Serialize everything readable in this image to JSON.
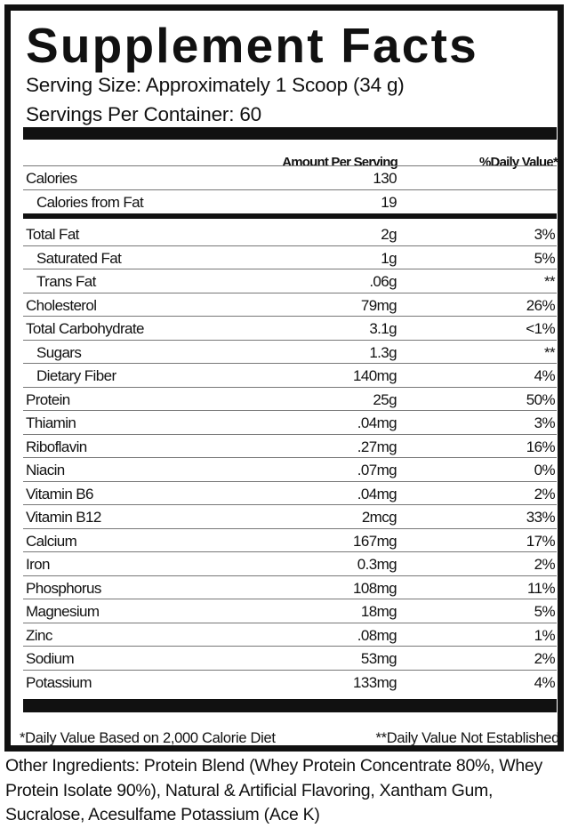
{
  "title": "Supplement Facts",
  "serving_size": "Serving Size: Approximately 1 Scoop (34 g)",
  "servings_per_container": "Servings Per Container: 60",
  "headers": {
    "amount": "Amount Per Serving",
    "daily_value": "%Daily Value*"
  },
  "calorie_rows": [
    {
      "name": "Calories",
      "amount": "130",
      "dv": "",
      "indent": false
    },
    {
      "name": "Calories from Fat",
      "amount": "19",
      "dv": "",
      "indent": true
    }
  ],
  "nutrient_rows": [
    {
      "name": "Total Fat",
      "amount": "2g",
      "dv": "3%",
      "indent": false
    },
    {
      "name": "Saturated Fat",
      "amount": "1g",
      "dv": "5%",
      "indent": true
    },
    {
      "name": "Trans Fat",
      "amount": ".06g",
      "dv": "**",
      "indent": true
    },
    {
      "name": "Cholesterol",
      "amount": "79mg",
      "dv": "26%",
      "indent": false
    },
    {
      "name": "Total Carbohydrate",
      "amount": "3.1g",
      "dv": "<1%",
      "indent": false
    },
    {
      "name": "Sugars",
      "amount": "1.3g",
      "dv": "**",
      "indent": true
    },
    {
      "name": "Dietary Fiber",
      "amount": "140mg",
      "dv": "4%",
      "indent": true
    },
    {
      "name": "Protein",
      "amount": "25g",
      "dv": "50%",
      "indent": false
    },
    {
      "name": "Thiamin",
      "amount": ".04mg",
      "dv": "3%",
      "indent": false
    },
    {
      "name": "Riboflavin",
      "amount": ".27mg",
      "dv": "16%",
      "indent": false
    },
    {
      "name": "Niacin",
      "amount": ".07mg",
      "dv": "0%",
      "indent": false
    },
    {
      "name": "Vitamin B6",
      "amount": ".04mg",
      "dv": "2%",
      "indent": false
    },
    {
      "name": "Vitamin B12",
      "amount": "2mcg",
      "dv": "33%",
      "indent": false
    },
    {
      "name": "Calcium",
      "amount": "167mg",
      "dv": "17%",
      "indent": false
    },
    {
      "name": "Iron",
      "amount": "0.3mg",
      "dv": "2%",
      "indent": false
    },
    {
      "name": "Phosphorus",
      "amount": "108mg",
      "dv": "11%",
      "indent": false
    },
    {
      "name": "Magnesium",
      "amount": "18mg",
      "dv": "5%",
      "indent": false
    },
    {
      "name": "Zinc",
      "amount": ".08mg",
      "dv": "1%",
      "indent": false
    },
    {
      "name": "Sodium",
      "amount": "53mg",
      "dv": "2%",
      "indent": false
    },
    {
      "name": "Potassium",
      "amount": "133mg",
      "dv": "4%",
      "indent": false
    }
  ],
  "footnotes": {
    "daily_value_basis": "*Daily Value Based on 2,000 Calorie Diet",
    "not_established": "**Daily Value Not Established"
  },
  "other_ingredients": "Other Ingredients: Protein Blend (Whey Protein Concentrate 80%, Whey Protein Isolate 90%), Natural & Artificial Flavoring, Xantham Gum, Sucralose, Acesulfame Potassium (Ace K)"
}
